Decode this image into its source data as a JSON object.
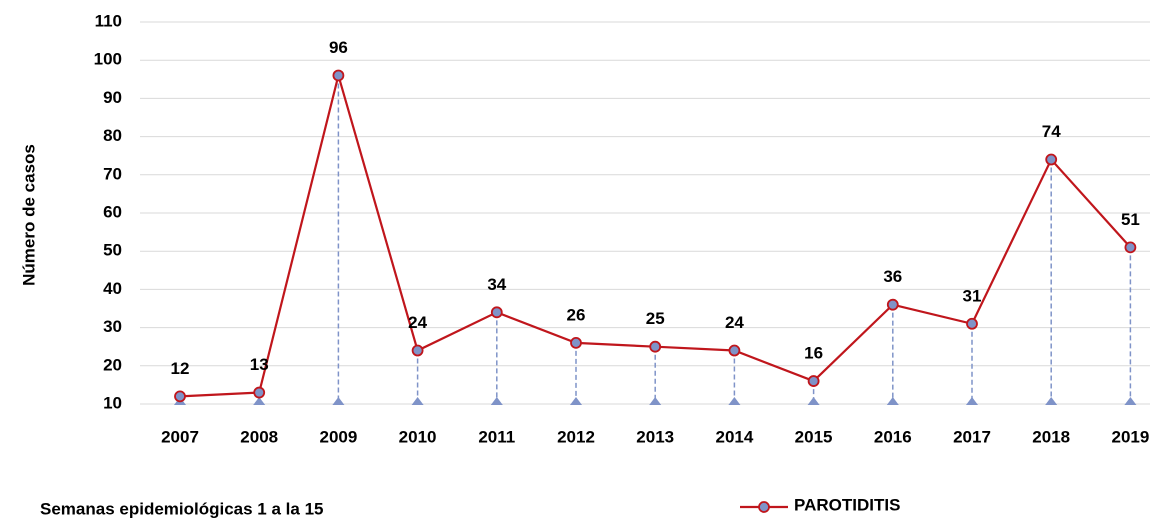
{
  "chart_data": {
    "type": "line",
    "ylabel": "Número de casos",
    "xlabel": "Semanas epidemiológicas 1 a la 15",
    "categories": [
      "2007",
      "2008",
      "2009",
      "2010",
      "2011",
      "2012",
      "2013",
      "2014",
      "2015",
      "2016",
      "2017",
      "2018",
      "2019"
    ],
    "series": [
      {
        "name": "PAROTIDITIS",
        "color": "#c0161c",
        "marker_color": "#7f93c8",
        "values": [
          12,
          13,
          96,
          24,
          34,
          26,
          25,
          24,
          16,
          36,
          31,
          74,
          51
        ]
      }
    ],
    "ylim": [
      10,
      110
    ],
    "yticks": [
      10,
      20,
      30,
      40,
      50,
      60,
      70,
      80,
      90,
      100,
      110
    ],
    "grid": true,
    "drop_lines": true,
    "data_labels": true,
    "legend": "bottom"
  }
}
